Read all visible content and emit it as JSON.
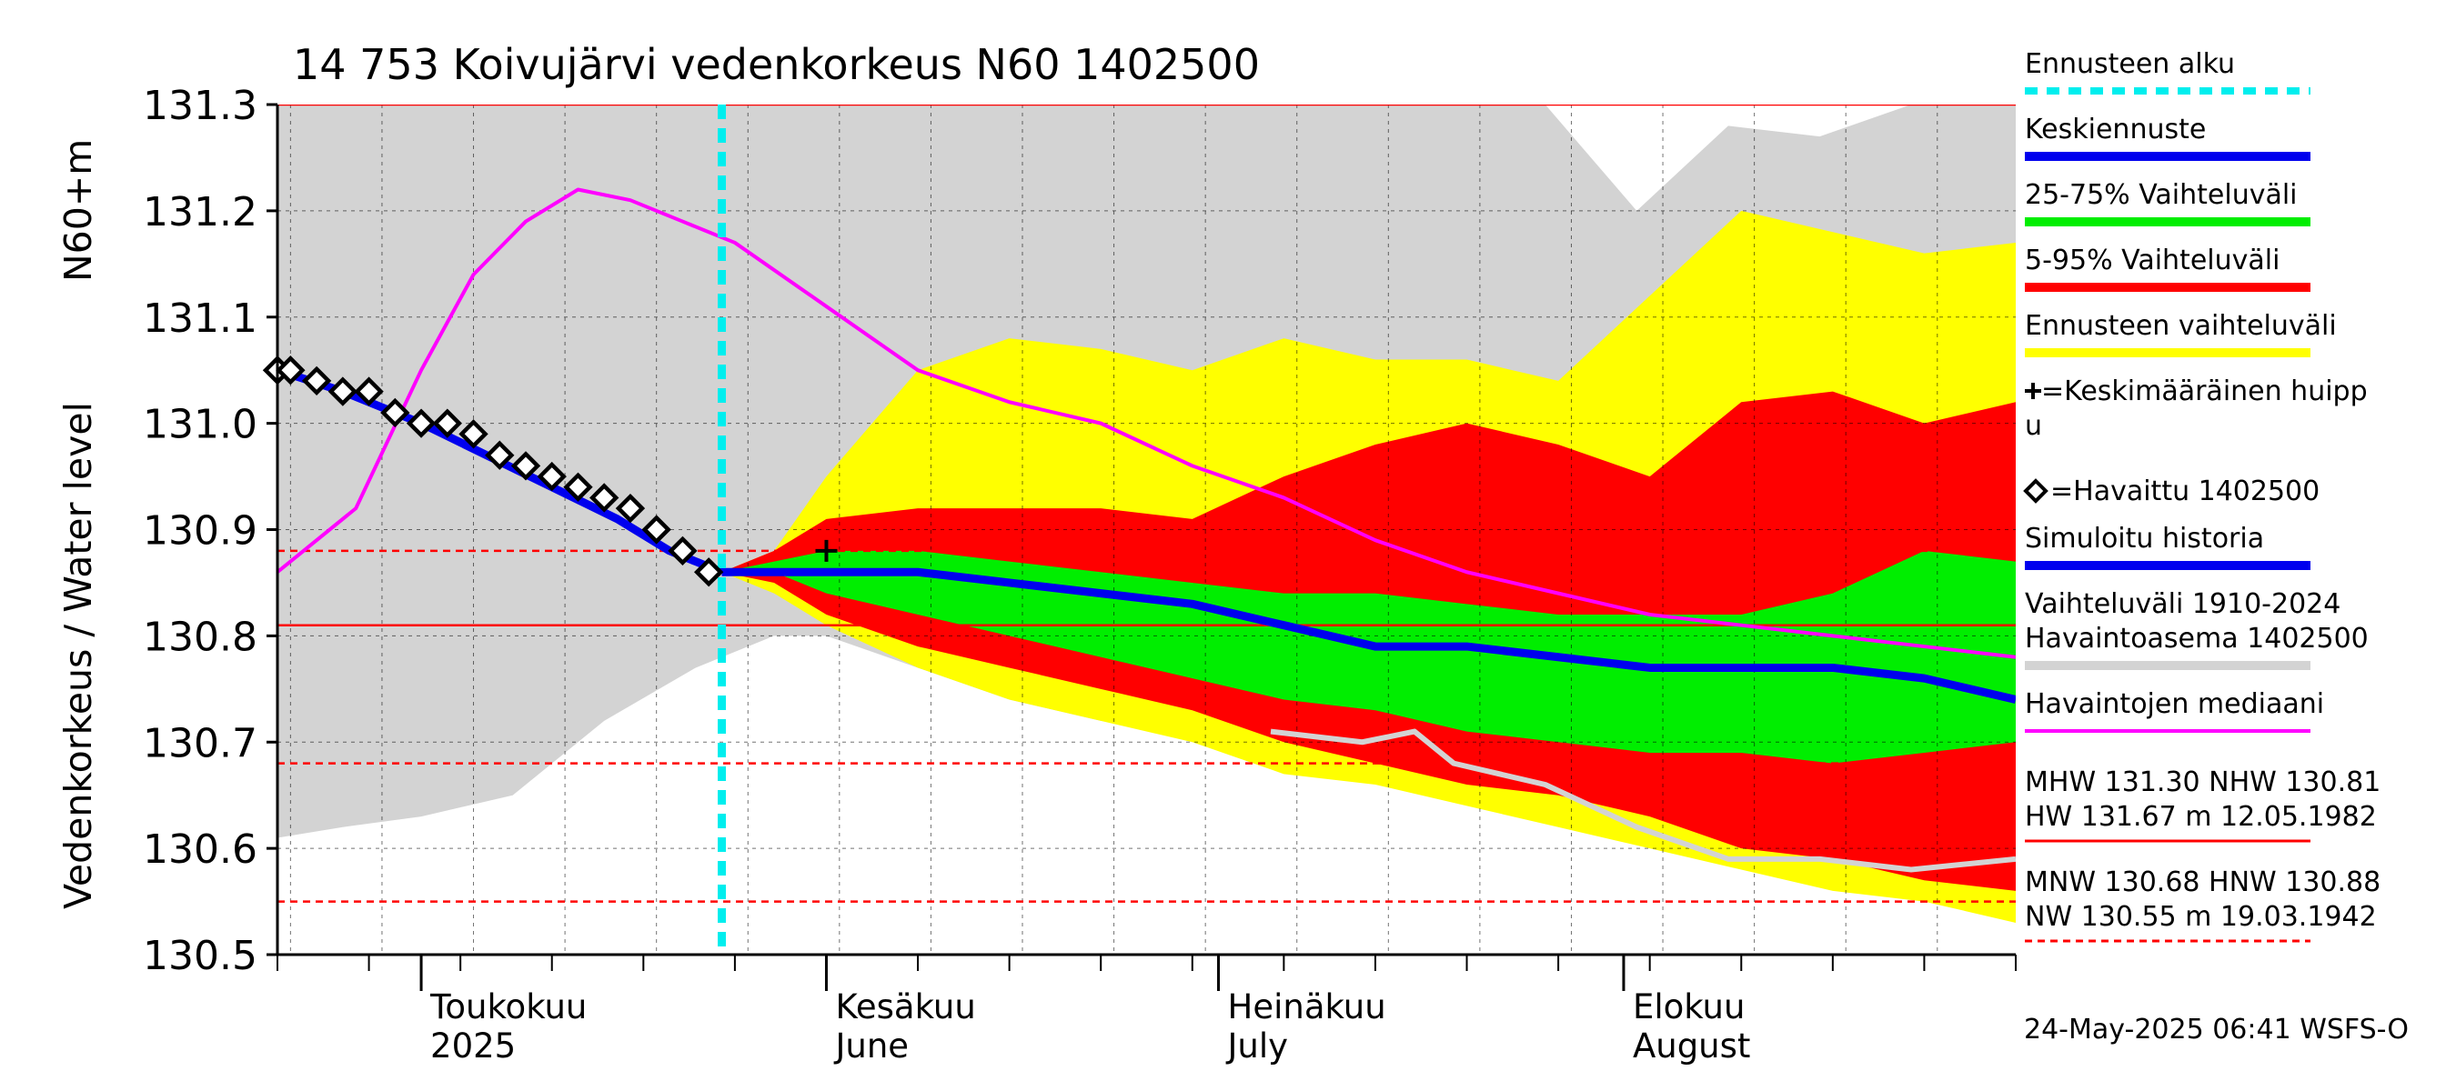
{
  "chart_data": {
    "type": "area",
    "title": "14 753 Koivujärvi vedenkorkeus N60 1402500",
    "ylabel_left": "Vedenkorkeus / Water level",
    "ylabel_unit": "N60+m",
    "ylim": [
      130.5,
      131.3
    ],
    "yticks": [
      "130.5",
      "130.6",
      "130.7",
      "130.8",
      "130.9",
      "131.0",
      "131.1",
      "131.2",
      "131.3"
    ],
    "yvalues": [
      130.5,
      130.6,
      130.7,
      130.8,
      130.9,
      131.0,
      131.1,
      131.2,
      131.3
    ],
    "xlim": [
      "2025-04-20",
      "2025-08-31"
    ],
    "months": [
      {
        "label": "Toukokuu",
        "sub": "2025",
        "date": "2025-05-01"
      },
      {
        "label": "Kesäkuu",
        "sub": "June",
        "date": "2025-06-01"
      },
      {
        "label": "Heinäkuu",
        "sub": "July",
        "date": "2025-07-01"
      },
      {
        "label": "Elokuu",
        "sub": "August",
        "date": "2025-08-01"
      }
    ],
    "forecast_start": "2025-05-24",
    "reference_lines": [
      {
        "name": "MHW",
        "value": 131.3,
        "style": "solid"
      },
      {
        "name": "NHW",
        "value": 130.81,
        "style": "solid"
      },
      {
        "name": "MNW",
        "value": 130.68,
        "style": "dashed"
      },
      {
        "name": "HNW",
        "value": 130.88,
        "style": "dashed"
      },
      {
        "name": "NW",
        "value": 130.55,
        "style": "dashed"
      }
    ],
    "series": [
      {
        "name": "Vaihteluväli 1910-2024 Havaintoasema 1402500",
        "kind": "band",
        "color": "#d3d3d3",
        "x": [
          "2025-04-20",
          "2025-04-25",
          "2025-05-01",
          "2025-05-08",
          "2025-05-15",
          "2025-05-22",
          "2025-05-28",
          "2025-06-01",
          "2025-06-08",
          "2025-06-15",
          "2025-06-22",
          "2025-06-29",
          "2025-07-05",
          "2025-07-12",
          "2025-07-19",
          "2025-07-26",
          "2025-08-02",
          "2025-08-09",
          "2025-08-16",
          "2025-08-23",
          "2025-08-31"
        ],
        "upper": [
          131.3,
          131.3,
          131.3,
          131.3,
          131.3,
          131.3,
          131.3,
          131.3,
          131.3,
          131.3,
          131.3,
          131.3,
          131.3,
          131.3,
          131.3,
          131.3,
          131.2,
          131.28,
          131.27,
          131.3,
          131.3
        ],
        "lower": [
          130.61,
          130.62,
          130.63,
          130.65,
          130.72,
          130.77,
          130.8,
          130.8,
          130.77,
          130.74,
          130.72,
          130.71,
          130.71,
          130.69,
          130.66,
          130.64,
          130.61,
          130.6,
          130.59,
          130.59,
          130.59
        ]
      },
      {
        "name": "Ennusteen vaihteluväli",
        "kind": "band",
        "color": "#ffff00",
        "x": [
          "2025-05-24",
          "2025-05-28",
          "2025-06-01",
          "2025-06-08",
          "2025-06-15",
          "2025-06-22",
          "2025-06-29",
          "2025-07-06",
          "2025-07-13",
          "2025-07-20",
          "2025-07-27",
          "2025-08-03",
          "2025-08-10",
          "2025-08-17",
          "2025-08-24",
          "2025-08-31"
        ],
        "upper": [
          130.86,
          130.88,
          130.95,
          131.05,
          131.08,
          131.07,
          131.05,
          131.08,
          131.06,
          131.06,
          131.04,
          131.12,
          131.2,
          131.18,
          131.16,
          131.17
        ],
        "lower": [
          130.86,
          130.84,
          130.81,
          130.77,
          130.74,
          130.72,
          130.7,
          130.67,
          130.66,
          130.64,
          130.62,
          130.6,
          130.58,
          130.56,
          130.55,
          130.53
        ]
      },
      {
        "name": "5-95% Vaihteluväli",
        "kind": "band",
        "color": "#ff0000",
        "x": [
          "2025-05-24",
          "2025-05-28",
          "2025-06-01",
          "2025-06-08",
          "2025-06-15",
          "2025-06-22",
          "2025-06-29",
          "2025-07-06",
          "2025-07-13",
          "2025-07-20",
          "2025-07-27",
          "2025-08-03",
          "2025-08-10",
          "2025-08-17",
          "2025-08-24",
          "2025-08-31"
        ],
        "upper": [
          130.86,
          130.88,
          130.91,
          130.92,
          130.92,
          130.92,
          130.91,
          130.95,
          130.98,
          131.0,
          130.98,
          130.95,
          131.02,
          131.03,
          131.0,
          131.02
        ],
        "lower": [
          130.86,
          130.85,
          130.82,
          130.79,
          130.77,
          130.75,
          130.73,
          130.7,
          130.68,
          130.66,
          130.65,
          130.63,
          130.6,
          130.59,
          130.57,
          130.56
        ]
      },
      {
        "name": "25-75% Vaihteluväli",
        "kind": "band",
        "color": "#00ee00",
        "x": [
          "2025-05-24",
          "2025-05-28",
          "2025-06-01",
          "2025-06-08",
          "2025-06-15",
          "2025-06-22",
          "2025-06-29",
          "2025-07-06",
          "2025-07-13",
          "2025-07-20",
          "2025-07-27",
          "2025-08-03",
          "2025-08-10",
          "2025-08-17",
          "2025-08-24",
          "2025-08-31"
        ],
        "upper": [
          130.86,
          130.87,
          130.88,
          130.88,
          130.87,
          130.86,
          130.85,
          130.84,
          130.84,
          130.83,
          130.82,
          130.82,
          130.82,
          130.84,
          130.88,
          130.87
        ],
        "lower": [
          130.86,
          130.86,
          130.84,
          130.82,
          130.8,
          130.78,
          130.76,
          130.74,
          130.73,
          130.71,
          130.7,
          130.69,
          130.69,
          130.68,
          130.69,
          130.7
        ]
      },
      {
        "name": "Keskiennuste",
        "kind": "line",
        "color": "#0000ee",
        "x": [
          "2025-05-24",
          "2025-05-28",
          "2025-06-01",
          "2025-06-08",
          "2025-06-15",
          "2025-06-22",
          "2025-06-29",
          "2025-07-06",
          "2025-07-13",
          "2025-07-20",
          "2025-07-27",
          "2025-08-03",
          "2025-08-10",
          "2025-08-17",
          "2025-08-24",
          "2025-08-31"
        ],
        "y": [
          130.86,
          130.86,
          130.86,
          130.86,
          130.85,
          130.84,
          130.83,
          130.81,
          130.79,
          130.79,
          130.78,
          130.77,
          130.77,
          130.77,
          130.76,
          130.74
        ]
      },
      {
        "name": "Simuloitu historia",
        "kind": "line",
        "color": "#0000ee",
        "x": [
          "2025-04-20",
          "2025-04-25",
          "2025-05-01",
          "2025-05-06",
          "2025-05-11",
          "2025-05-16",
          "2025-05-20",
          "2025-05-24"
        ],
        "y": [
          131.05,
          131.03,
          131.0,
          130.97,
          130.94,
          130.91,
          130.88,
          130.86
        ]
      },
      {
        "name": "Havaintojen mediaani",
        "kind": "line",
        "color": "#ff00ff",
        "x": [
          "2025-04-20",
          "2025-04-26",
          "2025-05-01",
          "2025-05-05",
          "2025-05-09",
          "2025-05-13",
          "2025-05-17",
          "2025-05-21",
          "2025-05-25",
          "2025-06-01",
          "2025-06-08",
          "2025-06-15",
          "2025-06-22",
          "2025-06-29",
          "2025-07-06",
          "2025-07-13",
          "2025-07-20",
          "2025-07-27",
          "2025-08-03",
          "2025-08-10",
          "2025-08-17",
          "2025-08-24",
          "2025-08-31"
        ],
        "y": [
          130.86,
          130.92,
          131.05,
          131.14,
          131.19,
          131.22,
          131.21,
          131.19,
          131.17,
          131.11,
          131.05,
          131.02,
          131.0,
          130.96,
          130.93,
          130.89,
          130.86,
          130.84,
          130.82,
          130.81,
          130.8,
          130.79,
          130.78
        ]
      },
      {
        "name": "=Havaittu 1402500",
        "kind": "points",
        "color": "#000000",
        "x": [
          "2025-04-20",
          "2025-04-21",
          "2025-04-23",
          "2025-04-25",
          "2025-04-27",
          "2025-04-29",
          "2025-05-01",
          "2025-05-03",
          "2025-05-05",
          "2025-05-07",
          "2025-05-09",
          "2025-05-11",
          "2025-05-13",
          "2025-05-15",
          "2025-05-17",
          "2025-05-19",
          "2025-05-21",
          "2025-05-23"
        ],
        "y": [
          131.05,
          131.05,
          131.04,
          131.03,
          131.03,
          131.01,
          131.0,
          131.0,
          130.99,
          130.97,
          130.96,
          130.95,
          130.94,
          130.93,
          130.92,
          130.9,
          130.88,
          130.86
        ]
      },
      {
        "name": "=Keskimääräinen huippu",
        "kind": "marker",
        "color": "#000000",
        "x": [
          "2025-06-01"
        ],
        "y": [
          130.88
        ]
      },
      {
        "name": "min history",
        "kind": "line",
        "color": "#d3d3d3",
        "x": [
          "2025-07-05",
          "2025-07-12",
          "2025-07-16",
          "2025-07-19",
          "2025-07-26",
          "2025-08-02",
          "2025-08-09",
          "2025-08-16",
          "2025-08-23",
          "2025-08-31"
        ],
        "y": [
          130.71,
          130.7,
          130.71,
          130.68,
          130.66,
          130.62,
          130.59,
          130.59,
          130.58,
          130.59
        ]
      }
    ],
    "legend": [
      {
        "label": "Ennusteen alku",
        "color": "#00eeee",
        "style": "dashed"
      },
      {
        "label": "Keskiennuste",
        "color": "#0000ee",
        "style": "thick"
      },
      {
        "label": "25-75% Vaihteluväli",
        "color": "#00ee00",
        "style": "thick"
      },
      {
        "label": "5-95% Vaihteluväli",
        "color": "#ff0000",
        "style": "thick"
      },
      {
        "label": "Ennusteen vaihteluväli",
        "color": "#ffff00",
        "style": "thick"
      },
      {
        "label": "=Keskimääräinen huipp",
        "label2": "u",
        "color": "#000000",
        "style": "plus"
      },
      {
        "label": "=Havaittu 1402500",
        "color": "#000000",
        "style": "diamond"
      },
      {
        "label": "Simuloitu historia",
        "color": "#0000ee",
        "style": "thick"
      },
      {
        "label": "Vaihteluväli 1910-2024",
        "label2": " Havaintoasema 1402500",
        "color": "#d3d3d3",
        "style": "thick"
      },
      {
        "label": "Havaintojen mediaani",
        "color": "#ff00ff",
        "style": "thin"
      }
    ],
    "stats": [
      {
        "line1": "MHW 131.30 NHW 130.81",
        "line2": "HW 131.67 m 12.05.1982",
        "color": "#ff0000",
        "style": "solid"
      },
      {
        "line1": "MNW 130.68 HNW 130.88",
        "line2": "NW 130.55 m 19.03.1942",
        "color": "#ff0000",
        "style": "dashed"
      }
    ],
    "timestamp": "24-May-2025 06:41 WSFS-O"
  }
}
